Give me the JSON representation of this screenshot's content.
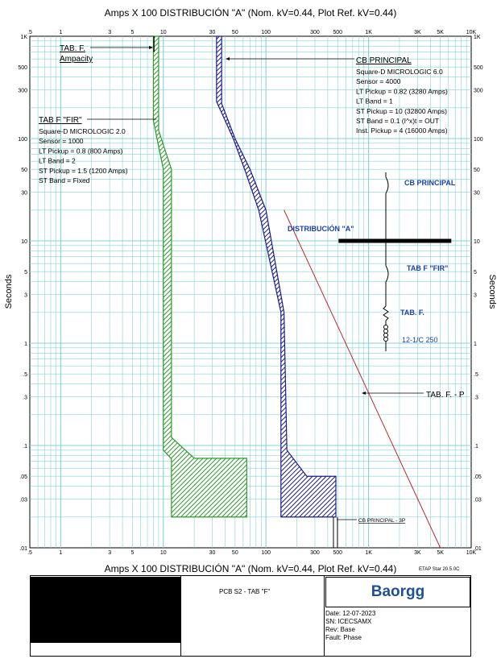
{
  "title_top": "Amps  X  100   DISTRIBUCIÓN \"A\" (Nom. kV=0.44, Plot Ref. kV=0.44)",
  "title_bottom": "Amps  X  100   DISTRIBUCIÓN \"A\" (Nom. kV=0.44, Plot Ref. kV=0.44)",
  "version": "ETAP Star 20.5.0C",
  "footer": {
    "project": "PCB S2 - TAB \"F\"",
    "logo": "Baorgg",
    "date": "Date:  12-07-2023",
    "sn": "SN:     ICECSAMX",
    "rev": "Rev:   Base",
    "fault": "Fault:  Phase"
  },
  "colors": {
    "green": "#2e9a2e",
    "blue": "#1c1c8a",
    "red": "#c0282a",
    "grid": "#86d3d3",
    "annot_blue": "#1a3fb0"
  },
  "chart_data": {
    "type": "line",
    "title": "Amps  X  100   DISTRIBUCIÓN \"A\" (Nom. kV=0.44, Plot Ref. kV=0.44)",
    "xlabel": "Amps X 100",
    "ylabel": "Seconds",
    "xscale": "log",
    "yscale": "log",
    "xlim": [
      0.5,
      10000
    ],
    "ylim": [
      0.01,
      1000
    ],
    "x_ticks": [
      ".5",
      "1",
      "3",
      "5",
      "10",
      "30",
      "50",
      "100",
      "300",
      "500",
      "1K",
      "3K",
      "5K",
      "10K"
    ],
    "y_ticks": [
      "1K",
      "500",
      "300",
      "100",
      "50",
      "30",
      "10",
      "5",
      "3",
      "1",
      ".5",
      ".3",
      ".1",
      ".05",
      ".03",
      ".01"
    ],
    "grid": true,
    "series": [
      {
        "name": "TAB F \"FIR\"",
        "color": "#2e9a2e",
        "band": true,
        "left": [
          [
            8,
            1000
          ],
          [
            8,
            150
          ],
          [
            10,
            50
          ],
          [
            10,
            0.09
          ],
          [
            12,
            0.074
          ]
        ],
        "right": [
          [
            9,
            1000
          ],
          [
            9,
            120
          ],
          [
            12,
            50
          ],
          [
            12,
            0.12
          ],
          [
            20,
            0.075
          ],
          [
            65,
            0.075
          ],
          [
            65,
            0.02
          ]
        ],
        "bottom": 0.02,
        "bottom_left": 12
      },
      {
        "name": "CB PRINCIPAL",
        "color": "#1c1c8a",
        "band": true,
        "left": [
          [
            33,
            1000
          ],
          [
            33,
            230
          ],
          [
            48,
            100
          ],
          [
            62,
            50
          ],
          [
            85,
            20
          ],
          [
            140,
            2
          ],
          [
            140,
            0.02
          ]
        ],
        "right": [
          [
            37,
            1000
          ],
          [
            37,
            220
          ],
          [
            50,
            100
          ],
          [
            70,
            50
          ],
          [
            100,
            20
          ],
          [
            150,
            2
          ],
          [
            160,
            0.09
          ],
          [
            250,
            0.05
          ],
          [
            480,
            0.05
          ],
          [
            480,
            0.02
          ]
        ],
        "bottom": 0.02
      },
      {
        "name": "TAB. F. - P",
        "color": "#c0282a",
        "points": [
          [
            150,
            20
          ],
          [
            5000,
            0.01
          ]
        ]
      }
    ],
    "ampacity_x": 8.1,
    "bus_line": {
      "y": 10,
      "x1": 510,
      "x2": 6400
    },
    "annotations": {
      "ampacity_label": [
        "TAB. F.",
        "Ampacity"
      ],
      "fir_label": "TAB F \"FIR\"",
      "fir_settings": [
        "Square-D  MICROLOGIC 2.0",
        "Sensor = 1000",
        "LT Pickup = 0.8 (800 Amps)",
        "LT Band = 2",
        "ST Pickup = 1.5 (1200 Amps)",
        "ST Band = Fixed"
      ],
      "cb_label": "CB PRINCIPAL",
      "cb_settings": [
        "Square-D  MICROLOGIC 6.0",
        "Sensor = 4000",
        "LT Pickup = 0.82 (3280 Amps)",
        "LT Band = 1",
        "ST Pickup = 10 (32800 Amps)",
        "ST Band = 0.1  (I^x)t = OUT",
        "Inst. Pickup = 4 (16000 Amps)"
      ],
      "tabfp_label": "TAB. F. - P",
      "cb3p_label": "CB PRINCIPAL - 3P",
      "one_line": {
        "cb_principal": "CB PRINCIPAL",
        "distribucion": "DISTRIBUCIÓN \"A\"",
        "tab_f_fir": "TAB F \"FIR\"",
        "tab_f": "TAB. F.",
        "cable": "12-1/C 250"
      }
    }
  }
}
